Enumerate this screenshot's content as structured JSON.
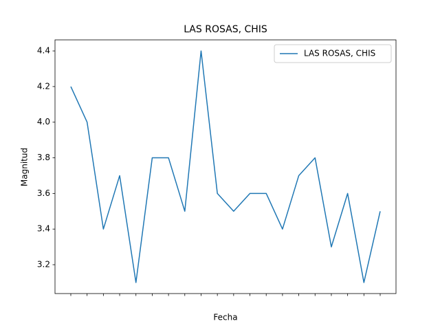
{
  "chart_data": {
    "type": "line",
    "title": "LAS ROSAS, CHIS",
    "xlabel": "Fecha",
    "ylabel": "Magnitud",
    "categories": [
      null,
      null,
      null,
      null,
      null,
      null,
      null,
      null,
      null,
      null,
      null,
      null,
      null,
      null,
      null,
      null,
      null,
      null,
      null,
      null
    ],
    "series": [
      {
        "name": "LAS ROSAS, CHIS",
        "color": "#1f77b4",
        "values": [
          4.2,
          4.0,
          3.4,
          3.7,
          3.1,
          3.8,
          3.8,
          3.5,
          4.4,
          3.6,
          3.5,
          3.6,
          3.6,
          3.4,
          3.7,
          3.8,
          3.3,
          3.6,
          3.1,
          3.5
        ]
      }
    ],
    "ylim": [
      3.038,
      4.462
    ],
    "yticks": [
      3.2,
      3.4,
      3.6,
      3.8,
      {
        "value": 4,
        "label": "4.0"
      },
      4.2,
      4.4
    ],
    "legend": "upper right",
    "grid": false
  }
}
